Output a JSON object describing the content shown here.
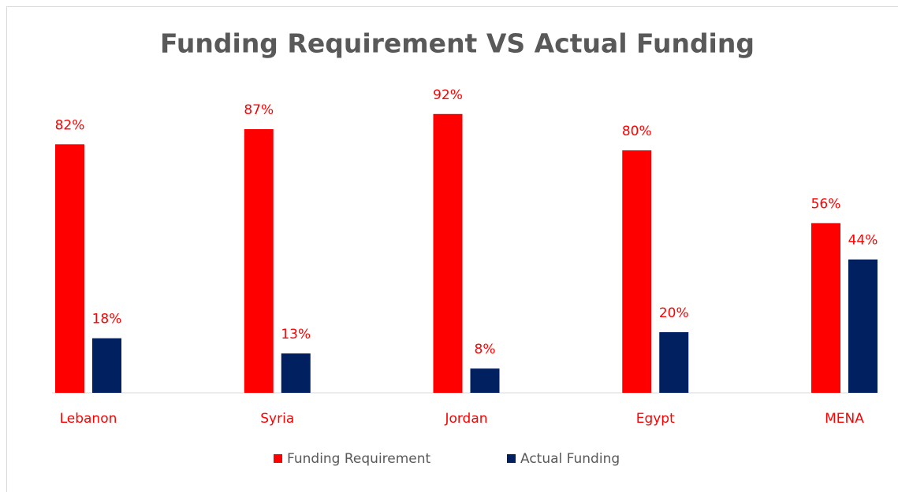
{
  "chart_data": {
    "type": "bar",
    "title": "Funding Requirement VS Actual Funding",
    "categories": [
      "Lebanon",
      "Syria",
      "Jordan",
      "Egypt",
      "MENA"
    ],
    "series": [
      {
        "name": "Funding Requirement",
        "color": "#ff0000",
        "values": [
          82,
          87,
          92,
          80,
          56
        ],
        "value_labels": [
          "82%",
          "87%",
          "92%",
          "80%",
          "56%"
        ]
      },
      {
        "name": "Actual Funding",
        "color": "#002060",
        "values": [
          18,
          13,
          8,
          20,
          44
        ],
        "value_labels": [
          "18%",
          "13%",
          "8%",
          "20%",
          "44%"
        ]
      }
    ],
    "ylim": [
      0,
      100
    ],
    "legend": "bottom"
  }
}
